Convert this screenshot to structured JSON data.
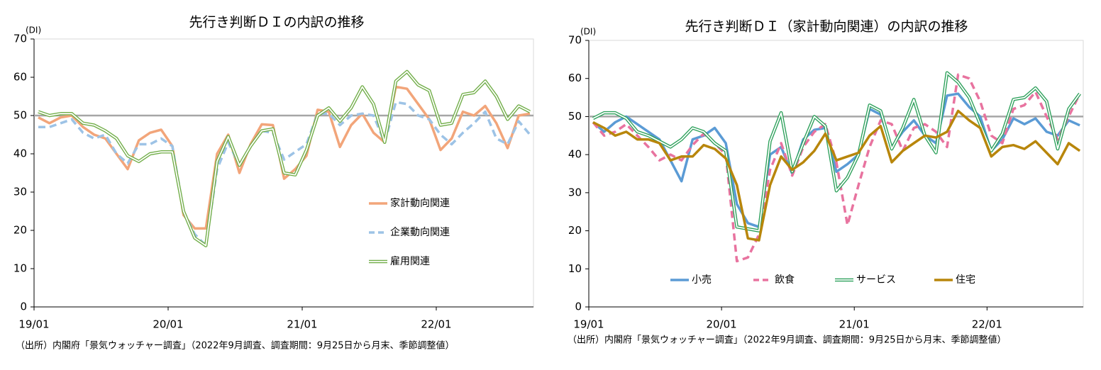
{
  "chart_data": [
    {
      "type": "line",
      "title": "先行き判断ＤＩの内訳の推移",
      "ylabel": "(DI)",
      "note": "（出所）内閣府「景気ウォッチャー調査」（2022年9月調査、調査期間：9月25日から月末、季節調整値）",
      "categories": [
        "19/01",
        null,
        null,
        null,
        null,
        null,
        null,
        null,
        null,
        null,
        null,
        null,
        "20/01",
        null,
        null,
        null,
        null,
        null,
        null,
        null,
        null,
        null,
        null,
        null,
        "21/01",
        null,
        null,
        null,
        null,
        null,
        null,
        null,
        null,
        null,
        null,
        null,
        "22/01",
        null,
        null,
        null,
        null,
        null,
        null,
        null,
        null
      ],
      "ylim": [
        0,
        70
      ],
      "yticks": [
        0,
        10,
        20,
        30,
        40,
        50,
        60,
        70
      ],
      "hline": 50,
      "legend": "right",
      "series": [
        {
          "name": "家計動向関連",
          "color": "#f2a57a",
          "style": "solid",
          "values": [
            49.5,
            48,
            49.5,
            50,
            47,
            45,
            44,
            40,
            36,
            43.5,
            45.5,
            46.3,
            42,
            24,
            20.5,
            20.5,
            40,
            45,
            35,
            42.5,
            47.7,
            47.5,
            33.5,
            36,
            39.5,
            51.5,
            51,
            41.8,
            47.5,
            50.5,
            45.5,
            43,
            57.5,
            57,
            53,
            49,
            41,
            44,
            51,
            50,
            52.5,
            48,
            41.5,
            50,
            50.5
          ]
        },
        {
          "name": "企業動向関連",
          "color": "#9dc3e6",
          "style": "dashed",
          "values": [
            47,
            47,
            48,
            49,
            45.5,
            44,
            45,
            40,
            37.5,
            42.5,
            42.5,
            44,
            42,
            25,
            19,
            16,
            36,
            43,
            37,
            42,
            46,
            45.5,
            38.5,
            40.5,
            42.5,
            50.5,
            50.5,
            47.5,
            50,
            50.5,
            50,
            43,
            53.5,
            53,
            50,
            49,
            45,
            42.5,
            45.5,
            48,
            51,
            44,
            42.5,
            48.5,
            45
          ]
        },
        {
          "name": "雇用関連",
          "color": "#70ad47",
          "style": "double",
          "values": [
            51,
            50,
            50.5,
            50.5,
            48,
            47.5,
            46,
            44,
            39.5,
            38,
            40,
            40.5,
            40.5,
            25,
            18,
            16,
            38,
            44.5,
            37,
            42,
            46,
            46.5,
            35,
            34.5,
            41,
            50,
            52,
            48.5,
            52,
            57.5,
            53,
            43,
            59,
            61.5,
            58,
            56.5,
            47.5,
            48,
            55.5,
            56,
            59,
            55,
            49,
            52.5,
            51
          ]
        }
      ]
    },
    {
      "type": "line",
      "title": "先行き判断ＤＩ（家計動向関連）の内訳の推移",
      "ylabel": "(DI)",
      "note": "（出所）内閣府「景気ウォッチャー調査」（2022年9月調査、調査期間：9月25日から月末、季節調整値）",
      "categories": [
        "19/01",
        null,
        null,
        null,
        null,
        null,
        null,
        null,
        null,
        null,
        null,
        null,
        "20/01",
        null,
        null,
        null,
        null,
        null,
        null,
        null,
        null,
        null,
        null,
        null,
        "21/01",
        null,
        null,
        null,
        null,
        null,
        null,
        null,
        null,
        null,
        null,
        null,
        "22/01",
        null,
        null,
        null,
        null,
        null,
        null,
        null,
        null
      ],
      "ylim": [
        0,
        70
      ],
      "yticks": [
        0,
        10,
        20,
        30,
        40,
        50,
        60,
        70
      ],
      "hline": 50,
      "legend": "bottom",
      "series": [
        {
          "name": "小売",
          "color": "#5b9bd5",
          "style": "solid",
          "values": [
            48.5,
            46,
            48.5,
            50,
            48,
            46,
            44,
            38.5,
            33,
            44,
            45,
            47,
            43,
            27,
            22,
            21,
            40,
            42,
            35,
            44,
            46.5,
            47,
            35.5,
            37.5,
            40,
            52,
            50.5,
            42,
            46,
            49,
            45,
            43,
            55.5,
            56,
            52.5,
            50,
            41,
            44,
            49.5,
            48,
            49.5,
            46,
            45,
            49,
            47.7
          ]
        },
        {
          "name": "飲食",
          "color": "#e8739f",
          "style": "dashed",
          "values": [
            48.5,
            45,
            46,
            48,
            45,
            42,
            38.5,
            40,
            38.5,
            42.5,
            45.5,
            43,
            40,
            12,
            13,
            19,
            36,
            43,
            34.5,
            42,
            46,
            48,
            38,
            21.5,
            32,
            42,
            49,
            48,
            41,
            47,
            48,
            46,
            42,
            61,
            60,
            54,
            45,
            43,
            52,
            53,
            56.5,
            50,
            44,
            50,
            56
          ]
        },
        {
          "name": "サービス",
          "color": "#2ca05a",
          "style": "double",
          "values": [
            49.5,
            51,
            51,
            49.5,
            46,
            45,
            43.5,
            42,
            44,
            47,
            46,
            43,
            41,
            21,
            20.5,
            20,
            43.5,
            51,
            35.5,
            43,
            50,
            47.5,
            30.5,
            34,
            40,
            53,
            51.5,
            41.5,
            47,
            54.5,
            45,
            40.5,
            61.5,
            59,
            55,
            48,
            41,
            45.5,
            54.5,
            55,
            57.5,
            54,
            41.5,
            52,
            56
          ]
        },
        {
          "name": "住宅",
          "color": "#b8860b",
          "style": "solid",
          "values": [
            48.5,
            47,
            45,
            46,
            44,
            44,
            43,
            38.5,
            39.5,
            39.5,
            42.5,
            41.5,
            39,
            32,
            18,
            17.5,
            32,
            39.5,
            36,
            38,
            41,
            45.5,
            38.5,
            39.5,
            40.5,
            45,
            47.5,
            38,
            41,
            43,
            45,
            44.5,
            46,
            51.5,
            49,
            47,
            39.5,
            42,
            42.5,
            41.5,
            43.5,
            40.5,
            37.5,
            43,
            41
          ]
        }
      ]
    }
  ]
}
